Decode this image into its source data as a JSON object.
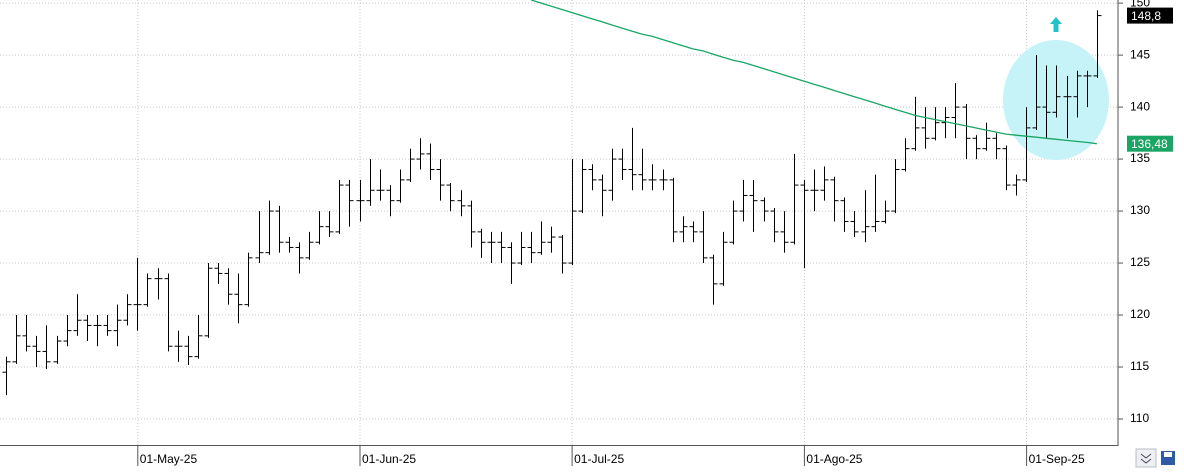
{
  "chart_data": {
    "type": "ohlc",
    "color": "#000000",
    "ylim": [
      107.5,
      150.3
    ],
    "yticks": [
      110,
      115,
      120,
      125,
      130,
      135,
      140,
      145,
      150
    ],
    "grid": true,
    "last_value_label": "148,8",
    "categories": [
      null,
      null,
      null,
      null,
      null,
      null,
      null,
      null,
      null,
      null,
      null,
      null,
      null,
      "01-May-25",
      null,
      null,
      null,
      null,
      null,
      null,
      null,
      null,
      null,
      null,
      null,
      null,
      null,
      null,
      null,
      null,
      null,
      null,
      null,
      null,
      null,
      "01-Jun-25",
      null,
      null,
      null,
      null,
      null,
      null,
      null,
      null,
      null,
      null,
      null,
      null,
      null,
      null,
      null,
      null,
      null,
      null,
      null,
      null,
      "01-Jul-25",
      null,
      null,
      null,
      null,
      null,
      null,
      null,
      null,
      null,
      null,
      null,
      null,
      null,
      null,
      null,
      null,
      null,
      null,
      null,
      null,
      null,
      null,
      "01-Ago-25",
      null,
      null,
      null,
      null,
      null,
      null,
      null,
      null,
      null,
      null,
      null,
      null,
      null,
      null,
      null,
      null,
      null,
      null,
      null,
      null,
      null,
      "01-Sep-25",
      null,
      null,
      null,
      null,
      null,
      null,
      null
    ],
    "open": [
      114.5,
      115.5,
      118,
      117,
      116.5,
      115.5,
      117.5,
      118.5,
      119.5,
      119,
      119,
      118.5,
      119.5,
      121,
      121,
      123.5,
      123.5,
      117,
      117,
      116,
      118,
      124.5,
      124,
      122,
      121,
      125.5,
      126,
      130,
      127,
      126.5,
      125.5,
      127,
      128.5,
      128,
      132.5,
      131,
      131,
      132,
      132,
      131,
      133,
      135,
      135.5,
      134,
      132.5,
      131,
      130.5,
      128,
      127,
      127,
      126.5,
      125,
      126.5,
      126,
      127,
      127.5,
      125,
      130,
      134,
      133,
      132,
      135,
      134,
      133.5,
      133,
      133,
      133,
      128,
      128.5,
      128,
      125.5,
      123,
      127,
      130,
      131.5,
      131,
      130,
      128,
      127,
      132.5,
      132,
      132,
      133,
      131,
      129,
      128,
      128.5,
      129,
      130,
      134,
      136,
      138,
      137,
      138.5,
      139,
      140,
      137,
      136,
      137,
      136,
      132.5,
      133,
      138,
      140,
      139.5,
      141,
      141,
      143,
      143
    ],
    "high": [
      116,
      120,
      120,
      118,
      119,
      118,
      120,
      122,
      120,
      120,
      120,
      121,
      122,
      125.5,
      124,
      124.5,
      124,
      118.5,
      118,
      120,
      125,
      125,
      124.5,
      124,
      126,
      130,
      131,
      130.5,
      127.5,
      127,
      128,
      130,
      130,
      133,
      133,
      133,
      135,
      134,
      132.5,
      134,
      136,
      137,
      136.5,
      135,
      132.7,
      132,
      131,
      128.3,
      128,
      128,
      127,
      128,
      128,
      129,
      128.5,
      127.7,
      135,
      135,
      134.5,
      133.5,
      136,
      136,
      138,
      136,
      134.5,
      134,
      133.2,
      129.5,
      129,
      130,
      125.8,
      128,
      131,
      133,
      133,
      131.3,
      130.3,
      130,
      135.5,
      133,
      134,
      134.3,
      133.3,
      131.3,
      130,
      132,
      133.5,
      131,
      135,
      137,
      141,
      140,
      140,
      140,
      142.3,
      140.3,
      137.3,
      138.5,
      137.5,
      136.3,
      133.5,
      140,
      145,
      144,
      144,
      143,
      143.5,
      143.5,
      149.3
    ],
    "low": [
      112.3,
      115.3,
      116.5,
      115,
      114.8,
      115.3,
      117,
      118,
      117.5,
      117,
      118,
      117,
      119,
      118.5,
      120.8,
      121.5,
      116.5,
      115.5,
      115.2,
      115.8,
      117.8,
      123,
      121,
      119.2,
      120.8,
      125,
      125.8,
      126,
      126,
      124,
      125.3,
      126.8,
      127.5,
      127.8,
      128.5,
      129,
      130.5,
      131,
      129.5,
      130.8,
      132.8,
      134,
      133,
      131,
      130,
      129.5,
      126.5,
      125.5,
      125,
      125,
      123,
      124.8,
      125,
      125.8,
      126,
      124,
      124.8,
      129.8,
      132,
      129.5,
      131,
      133,
      132,
      132,
      132,
      132,
      127,
      127,
      127,
      125,
      121,
      122.8,
      126.8,
      129,
      128,
      129,
      127,
      126,
      126.8,
      124.5,
      130,
      131,
      129,
      128,
      127.5,
      127,
      128,
      128.8,
      129.8,
      133.8,
      135.8,
      136,
      136.8,
      137,
      137,
      135,
      135,
      135.8,
      135,
      132,
      131.5,
      132.8,
      137.8,
      137,
      139,
      137,
      139,
      140,
      142.8
    ],
    "close": [
      115.5,
      118,
      117,
      116.5,
      115.5,
      117.5,
      118.5,
      119.5,
      119,
      119,
      118.5,
      119.5,
      121,
      121,
      123.5,
      123.5,
      117,
      117,
      116,
      118,
      124.5,
      124,
      122,
      121,
      125.5,
      126,
      130,
      127,
      126.5,
      125.5,
      127,
      128.5,
      128,
      132.5,
      131,
      131,
      132,
      132,
      131,
      133,
      135,
      135.5,
      134,
      132.5,
      131,
      130.5,
      128,
      127,
      127,
      126.5,
      125,
      126.5,
      126,
      127,
      127.5,
      125,
      130,
      134,
      133,
      132,
      135,
      134,
      133.5,
      133,
      133,
      133,
      128,
      128.5,
      128,
      125.5,
      123,
      127,
      130,
      131.5,
      131,
      130,
      128,
      127,
      132.5,
      132,
      132,
      133,
      131,
      129,
      128,
      128.5,
      129,
      130,
      134,
      136,
      138,
      137,
      138.5,
      139,
      140,
      137,
      136,
      137,
      136,
      132.5,
      133,
      138,
      140,
      139.5,
      141,
      141,
      143,
      143,
      148.8
    ],
    "overlay": {
      "type": "line",
      "color": "#1aa564",
      "last_value_label": "136,48",
      "values": [
        null,
        null,
        null,
        null,
        null,
        null,
        null,
        null,
        null,
        null,
        null,
        null,
        null,
        null,
        null,
        null,
        null,
        null,
        null,
        null,
        null,
        null,
        null,
        null,
        null,
        null,
        null,
        null,
        null,
        null,
        null,
        null,
        null,
        null,
        null,
        null,
        null,
        null,
        null,
        null,
        null,
        null,
        null,
        null,
        null,
        null,
        null,
        null,
        null,
        null,
        null,
        null,
        150.3,
        150.0,
        149.7,
        149.4,
        149.1,
        148.8,
        148.5,
        148.2,
        147.9,
        147.6,
        147.3,
        147.0,
        146.8,
        146.5,
        146.2,
        145.9,
        145.6,
        145.4,
        145.1,
        144.8,
        144.5,
        144.3,
        144.0,
        143.7,
        143.4,
        143.1,
        142.8,
        142.5,
        142.2,
        141.9,
        141.6,
        141.3,
        141.0,
        140.7,
        140.4,
        140.1,
        139.8,
        139.5,
        139.2,
        139.0,
        138.8,
        138.6,
        138.4,
        138.2,
        138.0,
        137.8,
        137.6,
        137.4,
        137.3,
        137.2,
        137.1,
        137.0,
        136.9,
        136.8,
        136.7,
        136.6,
        136.48
      ]
    }
  }
}
